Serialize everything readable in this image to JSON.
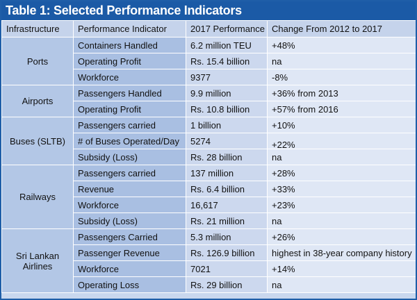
{
  "title": "Table 1: Selected Performance Indicators",
  "headers": {
    "infrastructure": "Infrastructure",
    "indicator": "Performance Indicator",
    "performance": "2017 Performance",
    "change": "Change From 2012 to 2017"
  },
  "ports": {
    "name": "Ports",
    "rows": [
      {
        "indicator": "Containers Handled",
        "performance": "6.2 million TEU",
        "change": "+48%"
      },
      {
        "indicator": "Operating Profit",
        "performance": "Rs. 15.4 billion",
        "change": "na"
      },
      {
        "indicator": "Workforce",
        "performance": "9377",
        "change": "-8%"
      }
    ]
  },
  "airports": {
    "name": "Airports",
    "rows": [
      {
        "indicator": "Passengers Handled",
        "performance": "9.9 million",
        "change": "+36% from 2013"
      },
      {
        "indicator": "Operating Profit",
        "performance": "Rs. 10.8 billion",
        "change": "+57% from 2016"
      }
    ]
  },
  "buses": {
    "name": "Buses (SLTB)",
    "rows": [
      {
        "indicator": "Passengers carried",
        "performance": "1 billion",
        "change": "+10%"
      },
      {
        "indicator": "# of Buses Operated/Day",
        "performance": "5274",
        "change": "+22%"
      },
      {
        "indicator": "Subsidy (Loss)",
        "performance": "Rs. 28 billion",
        "change": "na"
      }
    ]
  },
  "railways": {
    "name": "Railways",
    "rows": [
      {
        "indicator": "Passengers carried",
        "performance": "137 million",
        "change": "+28%"
      },
      {
        "indicator": "Revenue",
        "performance": "Rs. 6.4 billion",
        "change": "+33%"
      },
      {
        "indicator": "Workforce",
        "performance": "16,617",
        "change": "+23%"
      },
      {
        "indicator": "Subsidy (Loss)",
        "performance": "Rs. 21 million",
        "change": "na"
      }
    ]
  },
  "airlines": {
    "name": "Sri Lankan Airlines",
    "rows": [
      {
        "indicator": "Passengers Carried",
        "performance": "5.3 million",
        "change": "+26%"
      },
      {
        "indicator": "Passenger Revenue",
        "performance": "Rs. 126.9 billion",
        "change": "highest in 38-year company history"
      },
      {
        "indicator": "Workforce",
        "performance": "7021",
        "change": "+14%"
      },
      {
        "indicator": "Operating Loss",
        "performance": "Rs. 29 billion",
        "change": "na"
      }
    ]
  }
}
